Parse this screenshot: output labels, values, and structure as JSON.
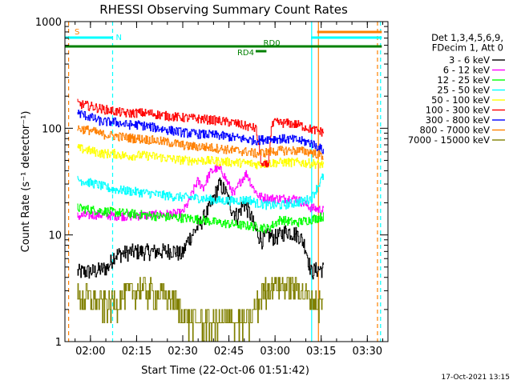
{
  "chart_data": {
    "type": "line",
    "title": "RHESSI Observing Summary Count Rates",
    "xlabel": "Start Time (22-Oct-06 01:51:42)",
    "ylabel": "Count Rate (s⁻¹ detector⁻¹)",
    "yscale": "log",
    "xlim_minutes": [
      0,
      105
    ],
    "ylim": [
      1,
      1000
    ],
    "x_ticks": [
      {
        "label": "02:00",
        "minute": 8.3
      },
      {
        "label": "02:15",
        "minute": 23.3
      },
      {
        "label": "02:30",
        "minute": 38.3
      },
      {
        "label": "02:45",
        "minute": 53.3
      },
      {
        "label": "03:00",
        "minute": 68.3
      },
      {
        "label": "03:15",
        "minute": 83.3
      },
      {
        "label": "03:30",
        "minute": 98.3
      }
    ],
    "y_ticks": [
      {
        "label": "1",
        "value": 1
      },
      {
        "label": "10",
        "value": 10
      },
      {
        "label": "100",
        "value": 100
      },
      {
        "label": "1000",
        "value": 1000
      }
    ],
    "legend_header": [
      "Det 1,3,4,5,6,9,",
      "FDecim 1, Att 0"
    ],
    "series": [
      {
        "name": "3 - 6 keV",
        "color": "#000000",
        "points": [
          [
            4,
            4.5
          ],
          [
            10,
            4.6
          ],
          [
            14,
            5
          ],
          [
            16,
            6.5
          ],
          [
            22,
            7
          ],
          [
            30,
            7
          ],
          [
            35,
            7.2
          ],
          [
            38,
            6.5
          ],
          [
            40,
            9
          ],
          [
            44,
            13
          ],
          [
            47,
            18
          ],
          [
            49,
            25
          ],
          [
            50,
            30
          ],
          [
            52,
            26
          ],
          [
            54,
            18
          ],
          [
            56,
            15
          ],
          [
            58,
            20
          ],
          [
            60,
            16
          ],
          [
            62,
            11
          ],
          [
            64,
            9
          ],
          [
            66,
            10
          ],
          [
            68,
            9.5
          ],
          [
            70,
            10
          ],
          [
            72,
            11
          ],
          [
            74,
            10.5
          ],
          [
            76,
            10
          ],
          [
            78,
            8
          ],
          [
            80,
            4.5
          ],
          [
            82,
            4.8
          ],
          [
            84,
            4.8
          ]
        ]
      },
      {
        "name": "6 - 12 keV",
        "color": "#ff00ff",
        "points": [
          [
            4,
            15
          ],
          [
            10,
            15.5
          ],
          [
            20,
            15
          ],
          [
            30,
            15.5
          ],
          [
            38,
            16
          ],
          [
            40,
            20
          ],
          [
            43,
            32
          ],
          [
            45,
            28
          ],
          [
            47,
            38
          ],
          [
            49,
            42
          ],
          [
            51,
            40
          ],
          [
            53,
            30
          ],
          [
            55,
            24
          ],
          [
            57,
            32
          ],
          [
            59,
            38
          ],
          [
            61,
            28
          ],
          [
            63,
            23
          ],
          [
            66,
            22
          ],
          [
            70,
            22
          ],
          [
            75,
            22
          ],
          [
            80,
            18
          ],
          [
            84,
            17
          ]
        ]
      },
      {
        "name": "12 - 25 keV",
        "color": "#00ff00",
        "points": [
          [
            4,
            18
          ],
          [
            10,
            17
          ],
          [
            20,
            16
          ],
          [
            30,
            15
          ],
          [
            38,
            14.5
          ],
          [
            44,
            14
          ],
          [
            50,
            13
          ],
          [
            56,
            12.5
          ],
          [
            62,
            12
          ],
          [
            66,
            11.5
          ],
          [
            70,
            14
          ],
          [
            75,
            13
          ],
          [
            80,
            14
          ],
          [
            84,
            15
          ]
        ]
      },
      {
        "name": "25 - 50 keV",
        "color": "#00ffff",
        "points": [
          [
            4,
            33
          ],
          [
            10,
            30
          ],
          [
            15,
            27
          ],
          [
            20,
            26
          ],
          [
            25,
            25
          ],
          [
            30,
            24
          ],
          [
            35,
            23
          ],
          [
            40,
            22.5
          ],
          [
            45,
            22
          ],
          [
            50,
            21
          ],
          [
            55,
            21
          ],
          [
            60,
            21.5
          ],
          [
            62,
            20
          ],
          [
            66,
            19
          ],
          [
            70,
            19
          ],
          [
            75,
            20
          ],
          [
            80,
            22
          ],
          [
            84,
            36
          ]
        ]
      },
      {
        "name": "50 - 100 keV",
        "color": "#ffff00",
        "points": [
          [
            4,
            65
          ],
          [
            8,
            62
          ],
          [
            12,
            58
          ],
          [
            16,
            58
          ],
          [
            20,
            55
          ],
          [
            24,
            56
          ],
          [
            28,
            55
          ],
          [
            32,
            53
          ],
          [
            36,
            51
          ],
          [
            40,
            50
          ],
          [
            45,
            50
          ],
          [
            50,
            49
          ],
          [
            55,
            48
          ],
          [
            60,
            47
          ],
          [
            62,
            46
          ],
          [
            66,
            47
          ],
          [
            70,
            48
          ],
          [
            75,
            48
          ],
          [
            80,
            47
          ],
          [
            84,
            46
          ]
        ]
      },
      {
        "name": "100 - 300 keV",
        "color": "#ff0000",
        "points": [
          [
            4,
            170
          ],
          [
            8,
            162
          ],
          [
            12,
            152
          ],
          [
            16,
            145
          ],
          [
            20,
            138
          ],
          [
            24,
            140
          ],
          [
            28,
            138
          ],
          [
            32,
            132
          ],
          [
            36,
            128
          ],
          [
            40,
            125
          ],
          [
            45,
            122
          ],
          [
            50,
            118
          ],
          [
            55,
            112
          ],
          [
            60,
            103
          ],
          [
            62,
            100
          ],
          [
            64,
            44
          ],
          [
            66,
            46
          ],
          [
            67,
            100
          ],
          [
            68,
            113
          ],
          [
            72,
            112
          ],
          [
            76,
            108
          ],
          [
            80,
            98
          ],
          [
            84,
            92
          ]
        ]
      },
      {
        "name": "300 - 800 keV",
        "color": "#0000ff",
        "points": [
          [
            4,
            140
          ],
          [
            8,
            128
          ],
          [
            12,
            115
          ],
          [
            16,
            115
          ],
          [
            20,
            108
          ],
          [
            24,
            108
          ],
          [
            28,
            103
          ],
          [
            32,
            98
          ],
          [
            36,
            94
          ],
          [
            40,
            90
          ],
          [
            45,
            88
          ],
          [
            50,
            86
          ],
          [
            55,
            82
          ],
          [
            60,
            78
          ],
          [
            62,
            77
          ],
          [
            66,
            80
          ],
          [
            70,
            80
          ],
          [
            75,
            78
          ],
          [
            80,
            73
          ],
          [
            84,
            62
          ]
        ]
      },
      {
        "name": "800 - 7000 keV",
        "color": "#ff8000",
        "points": [
          [
            4,
            100
          ],
          [
            8,
            96
          ],
          [
            12,
            88
          ],
          [
            16,
            85
          ],
          [
            20,
            82
          ],
          [
            24,
            80
          ],
          [
            28,
            78
          ],
          [
            32,
            75
          ],
          [
            36,
            72
          ],
          [
            40,
            68
          ],
          [
            45,
            67
          ],
          [
            50,
            65
          ],
          [
            55,
            62
          ],
          [
            60,
            60
          ],
          [
            62,
            58
          ],
          [
            66,
            60
          ],
          [
            70,
            62
          ],
          [
            75,
            62
          ],
          [
            80,
            60
          ],
          [
            84,
            55
          ]
        ]
      },
      {
        "name": "7000 - 15000 keV",
        "color": "#808000",
        "points": [
          [
            4,
            2.6
          ],
          [
            8,
            2.6
          ],
          [
            12,
            2.2
          ],
          [
            16,
            2.3
          ],
          [
            20,
            2.8
          ],
          [
            25,
            3.2
          ],
          [
            30,
            2.7
          ],
          [
            35,
            2.5
          ],
          [
            40,
            1.6
          ],
          [
            45,
            1.5
          ],
          [
            50,
            1.5
          ],
          [
            55,
            1.6
          ],
          [
            60,
            1.5
          ],
          [
            64,
            2.8
          ],
          [
            68,
            3.6
          ],
          [
            72,
            3.3
          ],
          [
            76,
            3.2
          ],
          [
            80,
            2.5
          ],
          [
            84,
            2.2
          ]
        ]
      }
    ],
    "flags": [
      {
        "label": "N",
        "color": "#00ffff",
        "spans": [
          [
            0,
            15.5
          ],
          [
            80,
            103
          ]
        ]
      },
      {
        "label": "S",
        "color": "#ff8000",
        "spans": [
          [
            82,
            103
          ]
        ]
      },
      {
        "label": "RD0",
        "color": "#008000",
        "spans": [
          [
            0,
            103
          ]
        ]
      },
      {
        "label": "RD4",
        "color": "#008000",
        "spans": [
          [
            62,
            65.5
          ]
        ]
      }
    ],
    "vertical_markers": [
      {
        "color": "#ff8000",
        "minute": 1.2,
        "style": "dashed"
      },
      {
        "color": "#00ffff",
        "minute": 15.5,
        "style": "dashed"
      },
      {
        "color": "#00ffff",
        "minute": 80.2,
        "style": "solid"
      },
      {
        "color": "#ff8000",
        "minute": 82.4,
        "style": "solid"
      },
      {
        "color": "#ff8000",
        "minute": 101.6,
        "style": "dashed"
      },
      {
        "color": "#00ffff",
        "minute": 102.6,
        "style": "dashed"
      }
    ],
    "footer_date": "17-Oct-2021 13:15"
  }
}
